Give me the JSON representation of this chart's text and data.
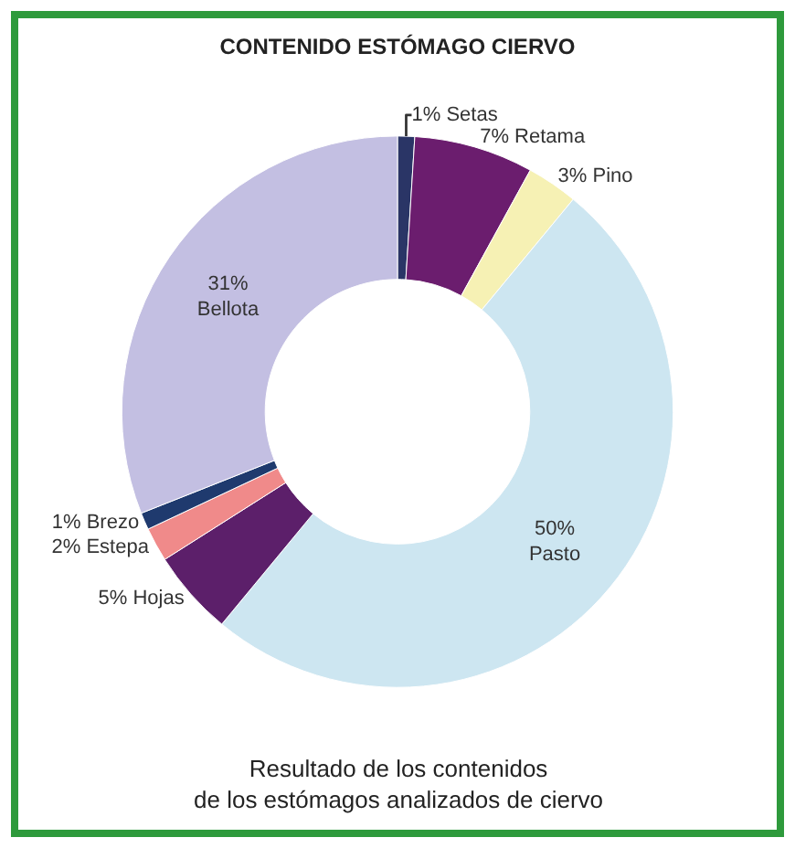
{
  "chart_data": {
    "type": "donut",
    "title": "CONTENIDO ESTÓMAGO CIERVO",
    "categories": [
      "Setas",
      "Retama",
      "Pino",
      "Pasto",
      "Hojas",
      "Estepa",
      "Brezo",
      "Bellota"
    ],
    "values": [
      1,
      7,
      3,
      50,
      5,
      2,
      1,
      31
    ],
    "value_labels": [
      "1%",
      "7%",
      "3%",
      "50%",
      "5%",
      "2%",
      "1%",
      "31%"
    ],
    "colors": [
      "#2a3566",
      "#6b1d6e",
      "#f6f1b4",
      "#cde6f1",
      "#5c1f6a",
      "#f08a8a",
      "#1f3a6e",
      "#c3bfe2"
    ],
    "annotations": [
      "Resultado de los contenidos\nde los estómagos analizados de ciervo"
    ],
    "legend": false
  }
}
